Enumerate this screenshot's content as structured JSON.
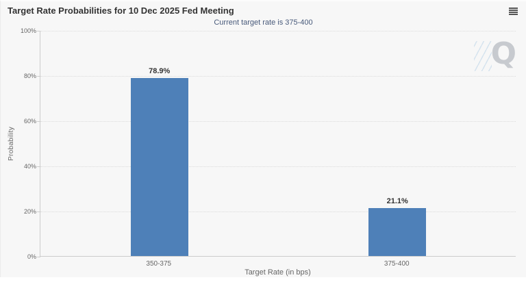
{
  "header": {
    "title": "Target Rate Probabilities for 10 Dec 2025 Fed Meeting",
    "subtitle": "Current target rate is 375-400"
  },
  "menu": {
    "icon": "hamburger-icon"
  },
  "watermark": {
    "letter": "Q"
  },
  "colors": {
    "bar": "#4e80b8",
    "background": "#f7f7f7",
    "title": "#333333",
    "subtitle": "#47597a",
    "axis_labels": "#666666",
    "gridline": "#dbdbdb",
    "axis_line": "#cccccc",
    "watermark": "#c7cacf"
  },
  "chart_data": {
    "type": "bar",
    "title": "Target Rate Probabilities for 10 Dec 2025 Fed Meeting",
    "subtitle": "Current target rate is 375-400",
    "categories": [
      "350-375",
      "375-400"
    ],
    "values": [
      78.9,
      21.1
    ],
    "value_labels": [
      "78.9%",
      "21.1%"
    ],
    "xlabel": "Target Rate (in bps)",
    "ylabel": "Probability",
    "ylim": [
      0,
      100
    ],
    "yticks": [
      0,
      20,
      40,
      60,
      80,
      100
    ],
    "ytick_labels": [
      "0%",
      "20%",
      "40%",
      "60%",
      "80%",
      "100%"
    ],
    "grid": "horizontal-dotted",
    "legend": "none"
  }
}
